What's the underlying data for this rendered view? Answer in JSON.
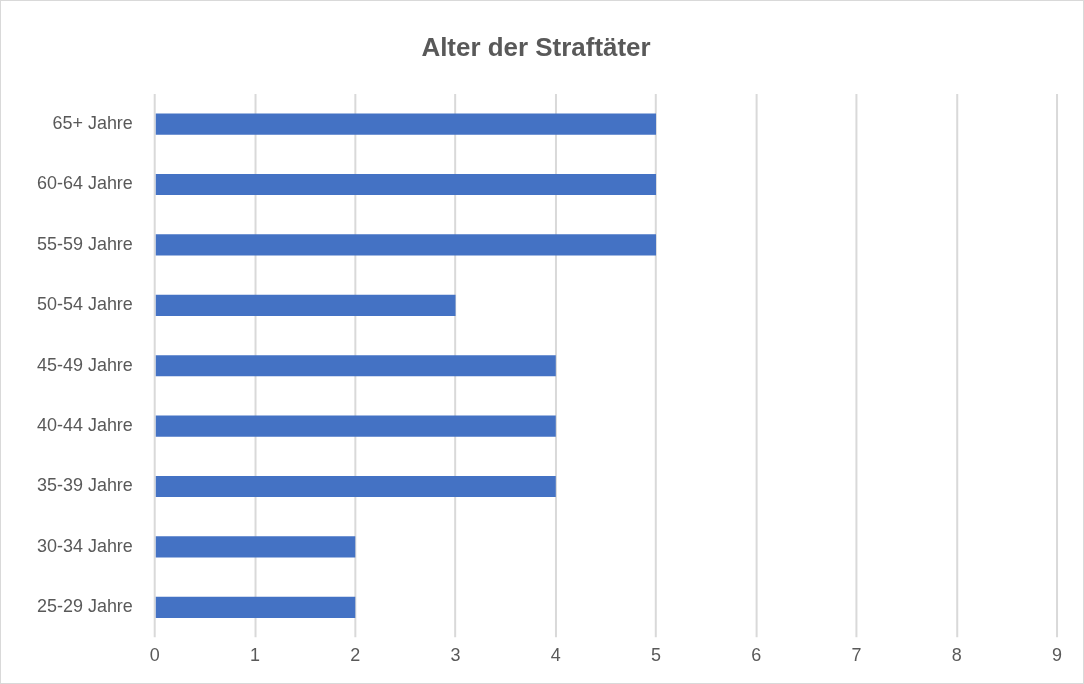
{
  "chart_data": {
    "type": "bar",
    "orientation": "horizontal",
    "title": "Alter der Straftäter",
    "categories": [
      "65+ Jahre",
      "60-64 Jahre",
      "55-59 Jahre",
      "50-54 Jahre",
      "45-49 Jahre",
      "40-44 Jahre",
      "35-39 Jahre",
      "30-34 Jahre",
      "25-29 Jahre"
    ],
    "values": [
      5,
      5,
      5,
      3,
      4,
      4,
      4,
      2,
      2
    ],
    "color": "#4472c4",
    "xlim": [
      0,
      9
    ],
    "xticks": [
      0,
      1,
      2,
      3,
      4,
      5,
      6,
      7,
      8,
      9
    ],
    "grid": "x",
    "legend": false
  }
}
